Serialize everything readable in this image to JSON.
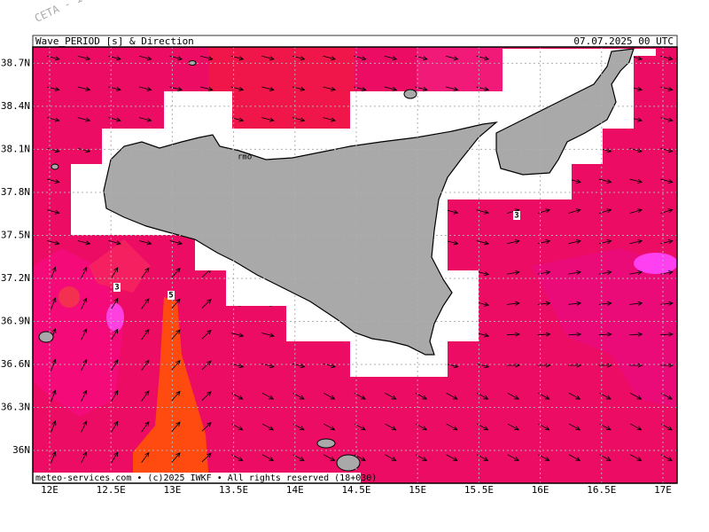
{
  "map": {
    "watermark": "CETA - In",
    "title": "Wave_PERIOD [s] & Direction",
    "valid_time": "07.07.2025 00 UTC",
    "place_label": "rmo",
    "footer": "meteo-services.com • (c)2025 IWKF • All rights reserved (18+030)",
    "lat_ticks": [
      {
        "value": 38.7,
        "label": "38.7N"
      },
      {
        "value": 38.4,
        "label": "38.4N"
      },
      {
        "value": 38.1,
        "label": "38.1N"
      },
      {
        "value": 37.8,
        "label": "37.8N"
      },
      {
        "value": 37.5,
        "label": "37.5N"
      },
      {
        "value": 37.2,
        "label": "37.2N"
      },
      {
        "value": 36.9,
        "label": "36.9N"
      },
      {
        "value": 36.6,
        "label": "36.6N"
      },
      {
        "value": 36.3,
        "label": "36.3N"
      },
      {
        "value": 36,
        "label": "36N"
      }
    ],
    "lon_ticks": [
      {
        "value": 12,
        "label": "12E"
      },
      {
        "value": 12.5,
        "label": "12.5E"
      },
      {
        "value": 13,
        "label": "13E"
      },
      {
        "value": 13.5,
        "label": "13.5E"
      },
      {
        "value": 14,
        "label": "14E"
      },
      {
        "value": 14.5,
        "label": "14.5E"
      },
      {
        "value": 15,
        "label": "15E"
      },
      {
        "value": 15.5,
        "label": "15.5E"
      },
      {
        "value": 16,
        "label": "16E"
      },
      {
        "value": 16.5,
        "label": "16.5E"
      },
      {
        "value": 17,
        "label": "17E"
      }
    ],
    "contour_labels": [
      3,
      5,
      3
    ]
  }
}
